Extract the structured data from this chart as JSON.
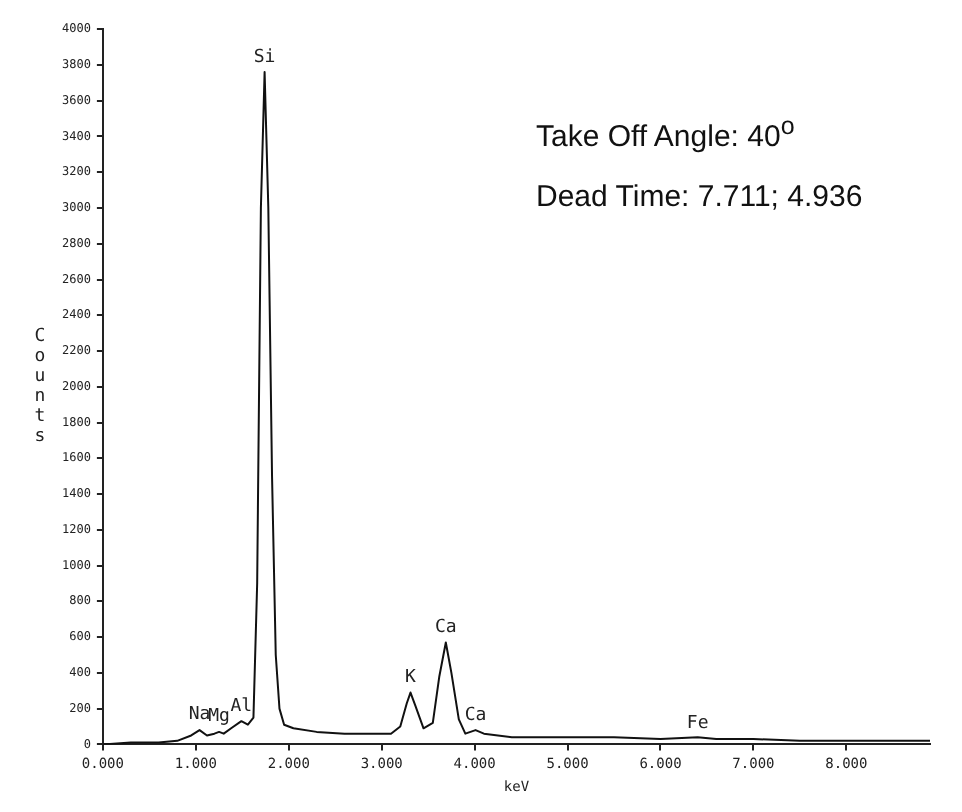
{
  "chart_data": {
    "type": "line",
    "xlabel": "keV",
    "ylabel": "Counts",
    "marker": "none",
    "line_style": "solid",
    "xlim": [
      0,
      8.9
    ],
    "xticks": [
      {
        "value": 0,
        "label": "0.000"
      },
      {
        "value": 1,
        "label": "1.000"
      },
      {
        "value": 2,
        "label": "2.000"
      },
      {
        "value": 3,
        "label": "3.000"
      },
      {
        "value": 4,
        "label": "4.000"
      },
      {
        "value": 5,
        "label": "5.000"
      },
      {
        "value": 6,
        "label": "6.000"
      },
      {
        "value": 7,
        "label": "7.000"
      },
      {
        "value": 8,
        "label": "8.000"
      }
    ],
    "ylim": [
      0,
      4000
    ],
    "yticks": [
      0,
      200,
      400,
      600,
      800,
      1000,
      1200,
      1400,
      1600,
      1800,
      2000,
      2200,
      2400,
      2600,
      2800,
      3000,
      3200,
      3400,
      3600,
      3800,
      4000
    ],
    "series": [
      {
        "color": "#111111",
        "x": [
          0,
          0.3,
          0.6,
          0.8,
          0.95,
          1.04,
          1.12,
          1.2,
          1.25,
          1.3,
          1.38,
          1.49,
          1.56,
          1.62,
          1.66,
          1.7,
          1.74,
          1.78,
          1.82,
          1.86,
          1.9,
          1.95,
          2.05,
          2.3,
          2.6,
          2.9,
          3.1,
          3.2,
          3.27,
          3.31,
          3.36,
          3.45,
          3.55,
          3.62,
          3.69,
          3.75,
          3.83,
          3.9,
          4.01,
          4.1,
          4.4,
          5.0,
          5.5,
          6.0,
          6.4,
          6.6,
          7.0,
          7.5,
          8.0,
          8.5,
          8.9
        ],
        "values": [
          0,
          10,
          10,
          20,
          50,
          80,
          50,
          60,
          70,
          60,
          90,
          130,
          110,
          150,
          900,
          3000,
          3760,
          3000,
          1500,
          500,
          200,
          110,
          90,
          70,
          60,
          60,
          60,
          100,
          230,
          290,
          220,
          90,
          120,
          380,
          570,
          400,
          140,
          60,
          80,
          60,
          40,
          40,
          40,
          30,
          40,
          30,
          30,
          20,
          20,
          20,
          20
        ]
      }
    ],
    "annotations": [
      {
        "text": "Na",
        "x": 1.04,
        "y": 85
      },
      {
        "text": "Mg",
        "x": 1.25,
        "y": 75
      },
      {
        "text": "Al",
        "x": 1.49,
        "y": 130
      },
      {
        "text": "Si",
        "x": 1.74,
        "y": 3760
      },
      {
        "text": "K",
        "x": 3.31,
        "y": 290
      },
      {
        "text": "Ca",
        "x": 3.69,
        "y": 570
      },
      {
        "text": "Ca",
        "x": 4.01,
        "y": 80
      },
      {
        "text": "Fe",
        "x": 6.4,
        "y": 35
      },
      "Take Off Angle: 40$^{o}$",
      "Dead Time: 7.711; 4.936"
    ]
  }
}
